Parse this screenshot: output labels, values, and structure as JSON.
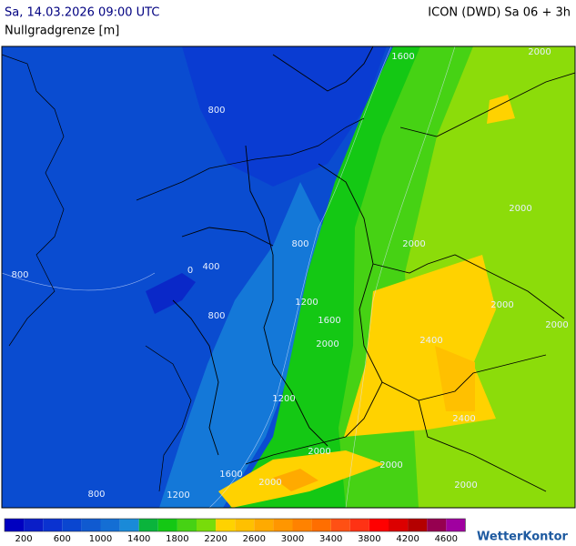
{
  "header": {
    "datetime": "Sa, 14.03.2026 09:00 UTC",
    "model": "ICON (DWD) Sa 06 + 3h",
    "parameter": "Nullgradgrenze [m]"
  },
  "map": {
    "contour_labels": [
      "1600",
      "2000",
      "800",
      "2000",
      "800",
      "2000",
      "400",
      "800",
      "0",
      "1200",
      "2000",
      "800",
      "1600",
      "2000",
      "2000",
      "2400",
      "1200",
      "2400",
      "2000",
      "2000",
      "1600",
      "2000",
      "800",
      "1200",
      "2000"
    ]
  },
  "legend": {
    "colors": [
      "#0000c0",
      "#0a1ec8",
      "#0a32d0",
      "#0a46d0",
      "#105ad0",
      "#146ed4",
      "#1a8ad8",
      "#0ab43c",
      "#14c814",
      "#46d214",
      "#78dc0a",
      "#ffd200",
      "#ffc000",
      "#ffaa00",
      "#ff9600",
      "#ff8200",
      "#ff6e00",
      "#ff5014",
      "#ff3214",
      "#ff0000",
      "#dc0000",
      "#b40000",
      "#960050",
      "#a000a0"
    ],
    "labels": [
      "200",
      "600",
      "1000",
      "1400",
      "1800",
      "2200",
      "2600",
      "3000",
      "3400",
      "3800",
      "4200",
      "4600"
    ]
  },
  "brand": "WetterKontor"
}
